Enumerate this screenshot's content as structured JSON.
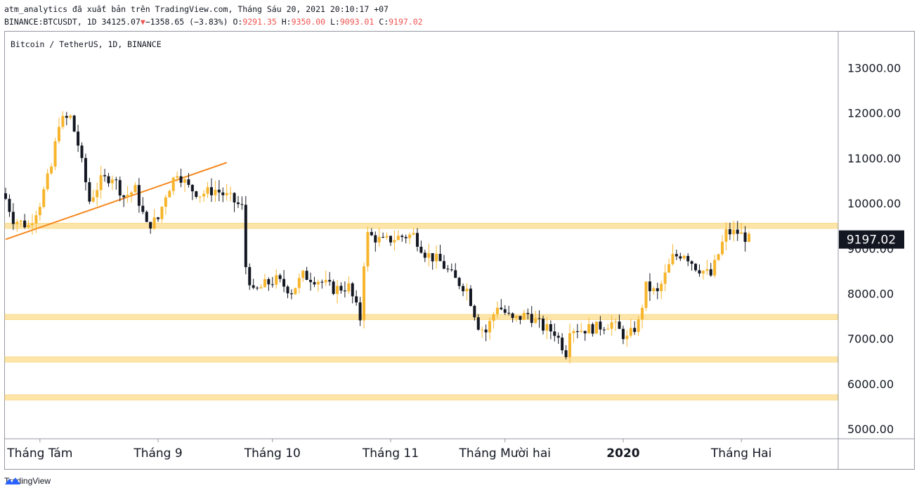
{
  "header": {
    "line1": "atm_analytics đã xuất bản trên TradingView.com, Tháng Sáu 20, 2021 20:10:17 +07",
    "symbol": "BINANCE:BTCUSDT, 1D",
    "last": "34125.07",
    "change_arrow": "▼",
    "change": "−1358.65 (−3.83%)",
    "o_label": "O:",
    "o_value": "9291.35",
    "h_label": "H:",
    "h_value": "9350.00",
    "l_label": "L:",
    "l_value": "9093.01",
    "c_label": "C:",
    "c_value": "9197.02"
  },
  "footer": {
    "brand": "TradingView"
  },
  "colors": {
    "up": "#f7b52c",
    "down": "#131722",
    "zone": "#fde5a8",
    "trend": "#f5891f",
    "price_label_bg": "#131722"
  },
  "chart_data": {
    "type": "candlestick",
    "legend": "Bitcoin / TetherUS, 1D, BINANCE",
    "y_ticks": [
      "13000.00",
      "12000.00",
      "11000.00",
      "10000.00",
      "9000.00",
      "8000.00",
      "7000.00",
      "6000.00",
      "5000.00"
    ],
    "x_ticks": [
      {
        "label": "Tháng Tám",
        "date": "2019-08-01",
        "bold": false
      },
      {
        "label": "Tháng 9",
        "date": "2019-09-01",
        "bold": false
      },
      {
        "label": "Tháng 10",
        "date": "2019-10-01",
        "bold": false
      },
      {
        "label": "Tháng 11",
        "date": "2019-11-01",
        "bold": false
      },
      {
        "label": "Tháng Mười hai",
        "date": "2019-12-01",
        "bold": false
      },
      {
        "label": "2020",
        "date": "2020-01-01",
        "bold": true
      },
      {
        "label": "Tháng Hai",
        "date": "2020-02-01",
        "bold": false
      }
    ],
    "ylim": [
      4800,
      13800
    ],
    "current_price": "9197.02",
    "current_value": 9197.02,
    "zones": [
      [
        9440,
        9560
      ],
      [
        7420,
        7540
      ],
      [
        6480,
        6600
      ],
      [
        5640,
        5760
      ]
    ],
    "trendline": {
      "from": {
        "date": "2019-07-23",
        "price": 9200
      },
      "to": {
        "date": "2019-09-19",
        "price": 10900
      }
    },
    "closes": [
      {
        "date": "2019-07-23",
        "close": 10100
      },
      {
        "date": "2019-07-25",
        "close": 9650
      },
      {
        "date": "2019-07-29",
        "close": 9500
      },
      {
        "date": "2019-08-01",
        "close": 10000
      },
      {
        "date": "2019-08-04",
        "close": 10800
      },
      {
        "date": "2019-08-06",
        "close": 11800
      },
      {
        "date": "2019-08-09",
        "close": 11900
      },
      {
        "date": "2019-08-11",
        "close": 11300
      },
      {
        "date": "2019-08-14",
        "close": 10050
      },
      {
        "date": "2019-08-17",
        "close": 10500
      },
      {
        "date": "2019-08-20",
        "close": 10600
      },
      {
        "date": "2019-08-23",
        "close": 10150
      },
      {
        "date": "2019-08-26",
        "close": 10300
      },
      {
        "date": "2019-08-29",
        "close": 9500
      },
      {
        "date": "2019-09-01",
        "close": 9650
      },
      {
        "date": "2019-09-03",
        "close": 10200
      },
      {
        "date": "2019-09-06",
        "close": 10700
      },
      {
        "date": "2019-09-09",
        "close": 10350
      },
      {
        "date": "2019-09-12",
        "close": 10200
      },
      {
        "date": "2019-09-16",
        "close": 10300
      },
      {
        "date": "2019-09-20",
        "close": 10100
      },
      {
        "date": "2019-09-23",
        "close": 9900
      },
      {
        "date": "2019-09-24",
        "close": 8600
      },
      {
        "date": "2019-09-26",
        "close": 8000
      },
      {
        "date": "2019-09-29",
        "close": 8200
      },
      {
        "date": "2019-10-02",
        "close": 8300
      },
      {
        "date": "2019-10-06",
        "close": 8050
      },
      {
        "date": "2019-10-09",
        "close": 8400
      },
      {
        "date": "2019-10-13",
        "close": 8300
      },
      {
        "date": "2019-10-17",
        "close": 8100
      },
      {
        "date": "2019-10-21",
        "close": 8150
      },
      {
        "date": "2019-10-24",
        "close": 7450
      },
      {
        "date": "2019-10-25",
        "close": 8700
      },
      {
        "date": "2019-10-26",
        "close": 9300
      },
      {
        "date": "2019-10-30",
        "close": 9150
      },
      {
        "date": "2019-11-03",
        "close": 9250
      },
      {
        "date": "2019-11-07",
        "close": 9300
      },
      {
        "date": "2019-11-10",
        "close": 8900
      },
      {
        "date": "2019-11-14",
        "close": 8700
      },
      {
        "date": "2019-11-18",
        "close": 8300
      },
      {
        "date": "2019-11-21",
        "close": 8100
      },
      {
        "date": "2019-11-24",
        "close": 7300
      },
      {
        "date": "2019-11-26",
        "close": 7150
      },
      {
        "date": "2019-11-29",
        "close": 7750
      },
      {
        "date": "2019-12-03",
        "close": 7400
      },
      {
        "date": "2019-12-07",
        "close": 7550
      },
      {
        "date": "2019-12-11",
        "close": 7250
      },
      {
        "date": "2019-12-14",
        "close": 7150
      },
      {
        "date": "2019-12-17",
        "close": 6700
      },
      {
        "date": "2019-12-18",
        "close": 7250
      },
      {
        "date": "2019-12-21",
        "close": 7200
      },
      {
        "date": "2019-12-25",
        "close": 7250
      },
      {
        "date": "2019-12-29",
        "close": 7350
      },
      {
        "date": "2020-01-02",
        "close": 7000
      },
      {
        "date": "2020-01-05",
        "close": 7350
      },
      {
        "date": "2020-01-07",
        "close": 8150
      },
      {
        "date": "2020-01-10",
        "close": 8000
      },
      {
        "date": "2020-01-14",
        "close": 8800
      },
      {
        "date": "2020-01-17",
        "close": 8900
      },
      {
        "date": "2020-01-20",
        "close": 8600
      },
      {
        "date": "2020-01-24",
        "close": 8400
      },
      {
        "date": "2020-01-28",
        "close": 9350
      },
      {
        "date": "2020-01-31",
        "close": 9350
      },
      {
        "date": "2020-02-03",
        "close": 9200
      }
    ]
  }
}
